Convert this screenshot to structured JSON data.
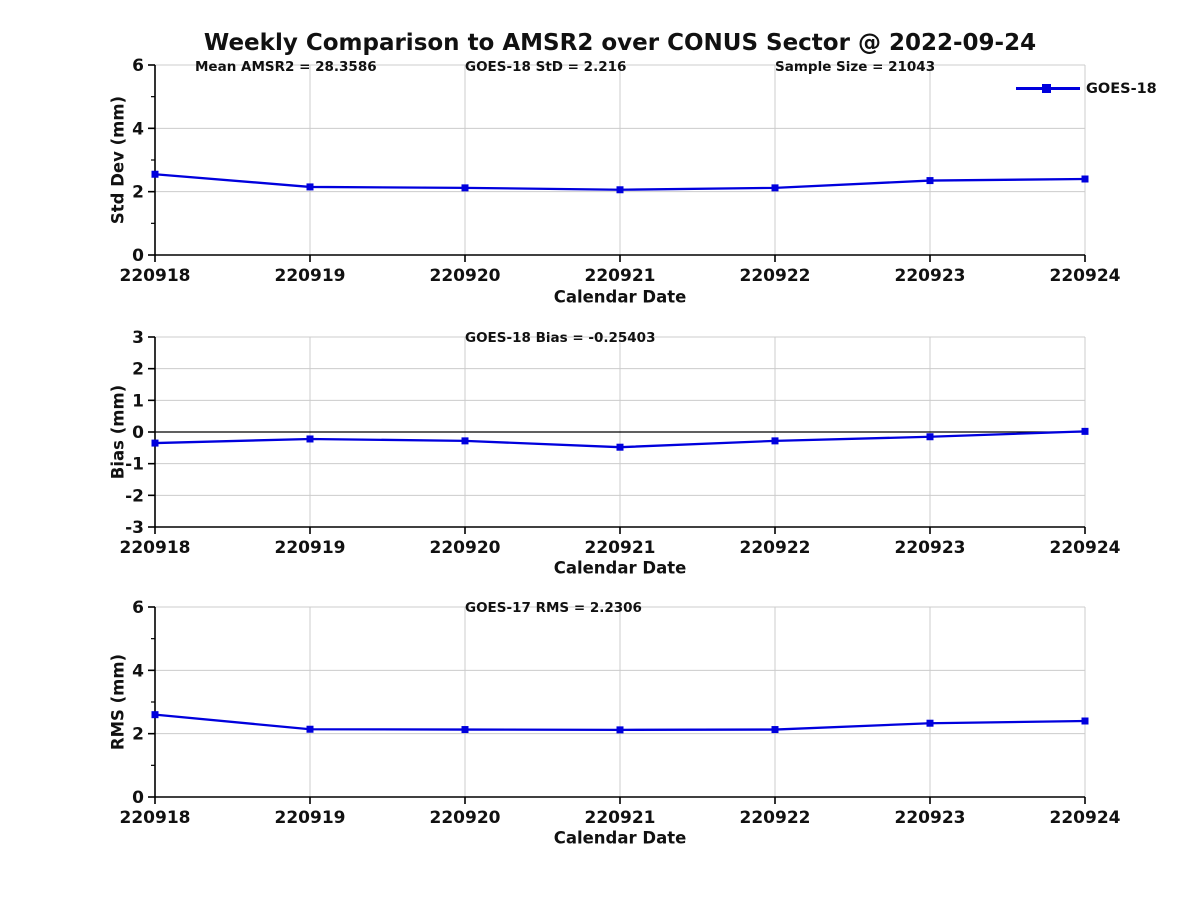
{
  "title": "Weekly Comparison to AMSR2 over CONUS Sector @ 2022-09-24",
  "legend": {
    "label": "GOES-18"
  },
  "colors": {
    "line": "#0000dd",
    "grid": "#cccccc",
    "axis": "#000000",
    "zero_line": "#000000",
    "text": "#111111"
  },
  "chart_data": [
    {
      "type": "line",
      "name": "std-dev",
      "ylabel": "Std Dev (mm)",
      "xlabel": "Calendar Date",
      "ylim": [
        0,
        6
      ],
      "yticks": [
        0,
        2,
        4,
        6
      ],
      "yticks_minor": [
        1,
        3,
        5
      ],
      "grid": true,
      "zero_line": false,
      "categories": [
        "220918",
        "220919",
        "220920",
        "220921",
        "220922",
        "220923",
        "220924"
      ],
      "series": [
        {
          "name": "GOES-18",
          "values": [
            2.55,
            2.15,
            2.12,
            2.06,
            2.12,
            2.35,
            2.4
          ]
        }
      ],
      "annotations": [
        {
          "text": "Mean AMSR2 = 28.3586"
        },
        {
          "text": "GOES-18 StD = 2.216"
        },
        {
          "text": "Sample Size = 21043"
        }
      ],
      "legend_position": "top-right-outside"
    },
    {
      "type": "line",
      "name": "bias",
      "ylabel": "Bias (mm)",
      "xlabel": "Calendar Date",
      "ylim": [
        -3,
        3
      ],
      "yticks": [
        -3,
        -2,
        -1,
        0,
        1,
        2,
        3
      ],
      "yticks_minor": [],
      "grid": true,
      "zero_line": true,
      "categories": [
        "220918",
        "220919",
        "220920",
        "220921",
        "220922",
        "220923",
        "220924"
      ],
      "series": [
        {
          "name": "GOES-18",
          "values": [
            -0.35,
            -0.22,
            -0.28,
            -0.48,
            -0.28,
            -0.15,
            0.02
          ]
        }
      ],
      "annotations": [
        {
          "text": "GOES-18 Bias  = -0.25403"
        }
      ]
    },
    {
      "type": "line",
      "name": "rms",
      "ylabel": "RMS (mm)",
      "xlabel": "Calendar Date",
      "ylim": [
        0,
        6
      ],
      "yticks": [
        0,
        2,
        4,
        6
      ],
      "yticks_minor": [
        1,
        3,
        5
      ],
      "grid": true,
      "zero_line": false,
      "categories": [
        "220918",
        "220919",
        "220920",
        "220921",
        "220922",
        "220923",
        "220924"
      ],
      "series": [
        {
          "name": "GOES-18",
          "values": [
            2.6,
            2.14,
            2.13,
            2.12,
            2.13,
            2.33,
            2.4
          ]
        }
      ],
      "annotations": [
        {
          "text": "GOES-17 RMS = 2.2306"
        }
      ]
    }
  ]
}
